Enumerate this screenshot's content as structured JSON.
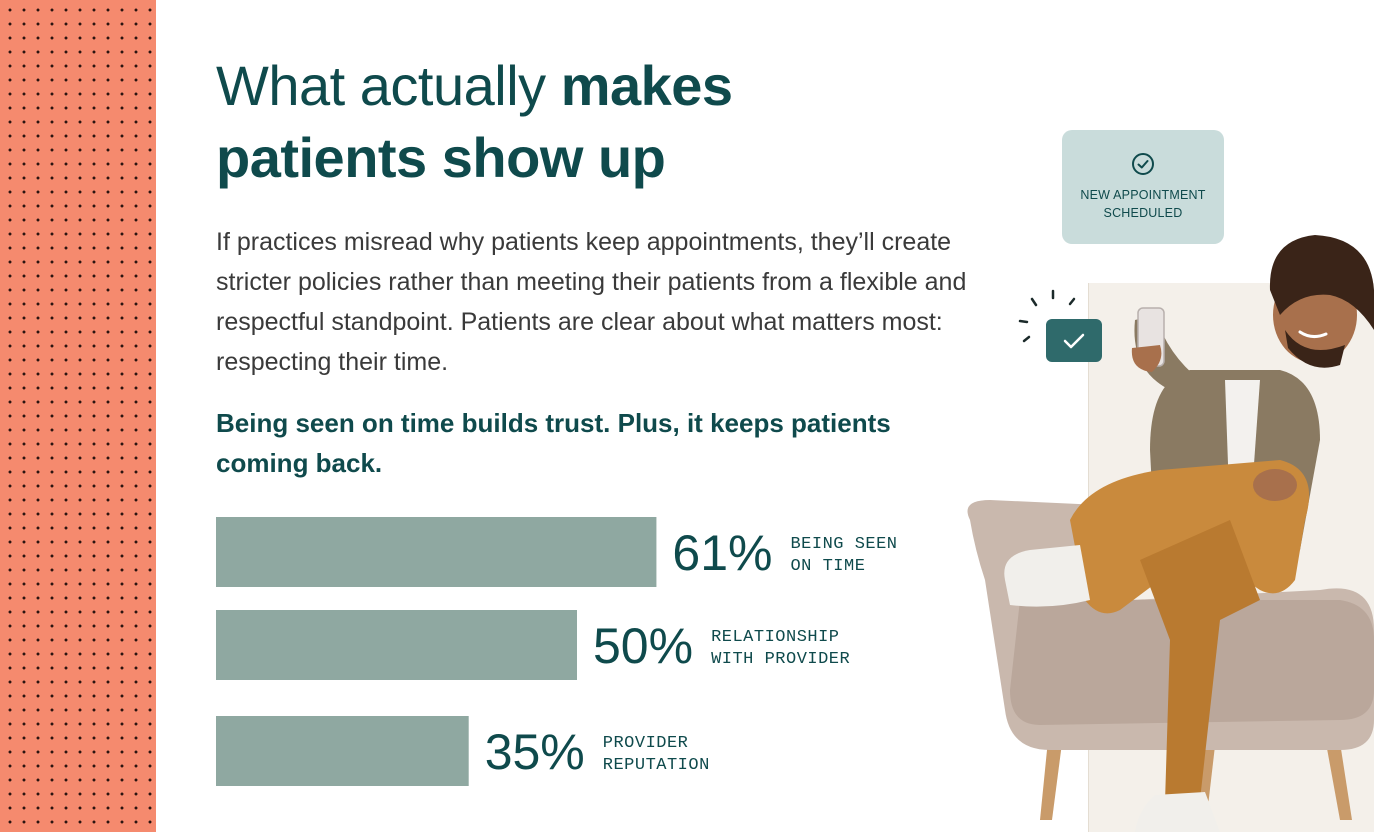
{
  "headline": {
    "regular": "What actually ",
    "bold_line1": "makes",
    "bold_line2": "patients show up"
  },
  "body": "If practices misread why patients keep appointments, they’ll create stricter policies rather than meeting their patients from a flexible and respectful standpoint. Patients are clear about what matters most: respecting their time.",
  "subhead": "Being seen on time builds trust. Plus, it keeps patients coming back.",
  "notification": {
    "icon": "check-circle-icon",
    "line1": "NEW APPOINTMENT",
    "line2": "SCHEDULED"
  },
  "chart_data": {
    "type": "bar",
    "orientation": "horizontal",
    "categories": [
      [
        "BEING SEEN",
        "ON TIME"
      ],
      [
        "RELATIONSHIP",
        "WITH PROVIDER"
      ],
      [
        "PROVIDER",
        "REPUTATION"
      ]
    ],
    "values": [
      61,
      50,
      35
    ],
    "value_labels": [
      "61%",
      "50%",
      "35%"
    ],
    "bar_color": "#8fa8a1",
    "label_color": "#0f4a4c",
    "xlim": [
      0,
      100
    ],
    "grid": false,
    "title": "",
    "xlabel": "",
    "ylabel": ""
  },
  "colors": {
    "accent": "#0f4a4c",
    "dots_bg": "#f58a6e",
    "card_bg": "#c9dcdb",
    "chip_bg": "#2f6a6b"
  }
}
